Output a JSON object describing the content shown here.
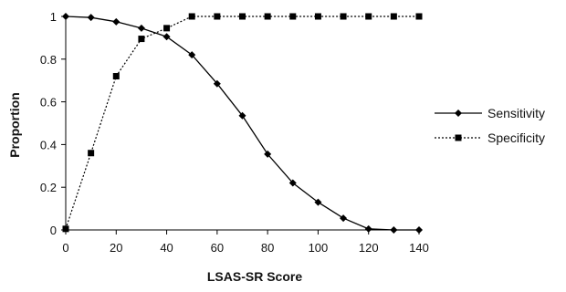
{
  "chart_data": {
    "type": "line",
    "title": "",
    "xlabel": "LSAS-SR Score",
    "ylabel": "Proportion",
    "xlim": [
      0,
      140
    ],
    "ylim": [
      0,
      1
    ],
    "x_ticks": [
      0,
      20,
      40,
      60,
      80,
      100,
      120,
      140
    ],
    "y_ticks": [
      0,
      0.2,
      0.4,
      0.6,
      0.8,
      1
    ],
    "y_tick_labels": [
      "0",
      "0.2",
      "0.4",
      "0.6",
      "0.8",
      "1"
    ],
    "grid": false,
    "legend_position": "right",
    "x": [
      0,
      10,
      20,
      30,
      40,
      50,
      60,
      70,
      80,
      90,
      100,
      110,
      120,
      130,
      140
    ],
    "series": [
      {
        "name": "Sensitivity",
        "marker": "diamond",
        "line_style": "solid",
        "values": [
          1.0,
          0.995,
          0.975,
          0.945,
          0.905,
          0.82,
          0.685,
          0.535,
          0.355,
          0.22,
          0.13,
          0.055,
          0.005,
          0.0,
          0.0
        ]
      },
      {
        "name": "Specificity",
        "marker": "square",
        "line_style": "dotted",
        "values": [
          0.005,
          0.36,
          0.72,
          0.895,
          0.945,
          1.0,
          1.0,
          1.0,
          1.0,
          1.0,
          1.0,
          1.0,
          1.0,
          1.0,
          1.0
        ]
      }
    ]
  }
}
